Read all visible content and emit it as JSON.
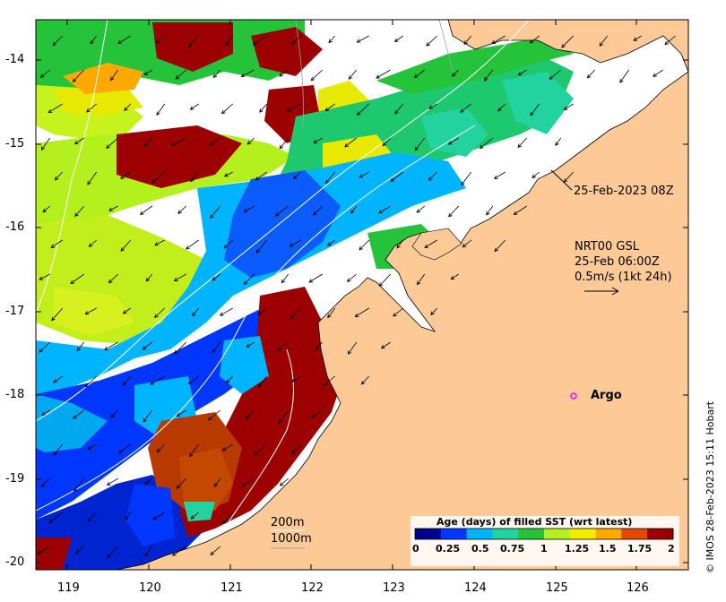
{
  "map": {
    "longitude_ticks": [
      "119",
      "120",
      "121",
      "122",
      "123",
      "124",
      "125",
      "126"
    ],
    "latitude_ticks": [
      "-14",
      "-15",
      "-16",
      "-17",
      "-18",
      "-19",
      "-20"
    ],
    "extent": {
      "lon": [
        118.6,
        126.8
      ],
      "lat": [
        -20.1,
        -13.5
      ]
    },
    "land_color": "#fcc997",
    "no_data_color": "#ffffff",
    "current_arrow_direction": "south-west"
  },
  "annotations": {
    "sst_time": "25-Feb-2023 08Z",
    "current_source": "NRT00 GSL",
    "current_time": "25-Feb 06:00Z",
    "current_scale": "0.5m/s (1kt 24h)",
    "argo_label": "Argo",
    "contour_200": "200m",
    "contour_1000": "1000m"
  },
  "colorbar": {
    "title": "Age (days) of filled SST (wrt latest)",
    "ticks": [
      "0",
      "0.25",
      "0.5",
      "0.75",
      "1",
      "1.25",
      "1.5",
      "1.75",
      "2"
    ],
    "colors": [
      "#00008f",
      "#0037ff",
      "#00b4ff",
      "#22d3a0",
      "#25c33a",
      "#b4f01e",
      "#f5eb00",
      "#ffa800",
      "#e24a00",
      "#9c0000"
    ]
  },
  "credit": "© IMOS 28-Feb-2023 15:11 Hobart"
}
